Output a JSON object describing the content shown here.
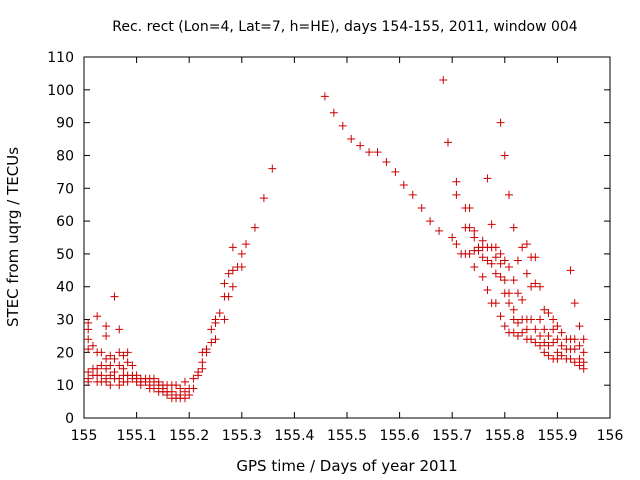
{
  "chart_data": {
    "type": "scatter",
    "title": "Rec. rect (Lon=4, Lat=7, h=HE), days 154-155, 2011, window 004",
    "xlabel": "GPS time / Days of year 2011",
    "ylabel": "STEC from uqrg / TECUs",
    "xlim": [
      155,
      156
    ],
    "ylim": [
      0,
      110
    ],
    "x_ticks": [
      "155",
      "155.1",
      "155.2",
      "155.3",
      "155.4",
      "155.5",
      "155.6",
      "155.7",
      "155.8",
      "155.9",
      "156"
    ],
    "y_ticks": [
      "0",
      "10",
      "20",
      "30",
      "40",
      "50",
      "60",
      "70",
      "80",
      "90",
      "100",
      "110"
    ],
    "grid": false,
    "legend": "none",
    "marker": "plus",
    "color": "#cc0000",
    "series": [
      {
        "points": [
          [
            155.008,
            29
          ],
          [
            155.008,
            27
          ],
          [
            155.008,
            24
          ],
          [
            155.008,
            21
          ],
          [
            155.008,
            14
          ],
          [
            155.008,
            12
          ],
          [
            155.008,
            11
          ],
          [
            155.017,
            22
          ],
          [
            155.017,
            15
          ],
          [
            155.017,
            13
          ],
          [
            155.025,
            31
          ],
          [
            155.025,
            20
          ],
          [
            155.025,
            15
          ],
          [
            155.025,
            13
          ],
          [
            155.025,
            11
          ],
          [
            155.033,
            20
          ],
          [
            155.033,
            16
          ],
          [
            155.033,
            13
          ],
          [
            155.033,
            11
          ],
          [
            155.042,
            28
          ],
          [
            155.042,
            25
          ],
          [
            155.042,
            18
          ],
          [
            155.042,
            15
          ],
          [
            155.042,
            12
          ],
          [
            155.042,
            11
          ],
          [
            155.05,
            19
          ],
          [
            155.05,
            16
          ],
          [
            155.05,
            13
          ],
          [
            155.05,
            10
          ],
          [
            155.058,
            37
          ],
          [
            155.058,
            18
          ],
          [
            155.058,
            14
          ],
          [
            155.058,
            12
          ],
          [
            155.067,
            27
          ],
          [
            155.067,
            20
          ],
          [
            155.067,
            16
          ],
          [
            155.067,
            12
          ],
          [
            155.067,
            10
          ],
          [
            155.075,
            19
          ],
          [
            155.075,
            15
          ],
          [
            155.075,
            13
          ],
          [
            155.075,
            11
          ],
          [
            155.083,
            20
          ],
          [
            155.083,
            17
          ],
          [
            155.083,
            13
          ],
          [
            155.083,
            11
          ],
          [
            155.092,
            16
          ],
          [
            155.092,
            13
          ],
          [
            155.092,
            12
          ],
          [
            155.1,
            13
          ],
          [
            155.1,
            12
          ],
          [
            155.1,
            11
          ],
          [
            155.108,
            12
          ],
          [
            155.108,
            11
          ],
          [
            155.108,
            10
          ],
          [
            155.117,
            12
          ],
          [
            155.117,
            11
          ],
          [
            155.125,
            12
          ],
          [
            155.125,
            10
          ],
          [
            155.125,
            9
          ],
          [
            155.133,
            12
          ],
          [
            155.133,
            11
          ],
          [
            155.133,
            9
          ],
          [
            155.142,
            11
          ],
          [
            155.142,
            10
          ],
          [
            155.142,
            8
          ],
          [
            155.15,
            10
          ],
          [
            155.15,
            9
          ],
          [
            155.15,
            8
          ],
          [
            155.158,
            10
          ],
          [
            155.158,
            8
          ],
          [
            155.158,
            7
          ],
          [
            155.167,
            10
          ],
          [
            155.167,
            8
          ],
          [
            155.167,
            6
          ],
          [
            155.175,
            10
          ],
          [
            155.175,
            7
          ],
          [
            155.175,
            6
          ],
          [
            155.183,
            9
          ],
          [
            155.183,
            7
          ],
          [
            155.183,
            6
          ],
          [
            155.192,
            11
          ],
          [
            155.192,
            8
          ],
          [
            155.192,
            6
          ],
          [
            155.2,
            9
          ],
          [
            155.2,
            7
          ],
          [
            155.208,
            12
          ],
          [
            155.208,
            9
          ],
          [
            155.217,
            14
          ],
          [
            155.217,
            13
          ],
          [
            155.225,
            20
          ],
          [
            155.225,
            17
          ],
          [
            155.225,
            15
          ],
          [
            155.233,
            21
          ],
          [
            155.233,
            20
          ],
          [
            155.242,
            27
          ],
          [
            155.242,
            23
          ],
          [
            155.25,
            30
          ],
          [
            155.25,
            29
          ],
          [
            155.25,
            24
          ],
          [
            155.258,
            32
          ],
          [
            155.267,
            41
          ],
          [
            155.267,
            37
          ],
          [
            155.267,
            30
          ],
          [
            155.275,
            44
          ],
          [
            155.275,
            37
          ],
          [
            155.283,
            52
          ],
          [
            155.283,
            45
          ],
          [
            155.283,
            40
          ],
          [
            155.292,
            46
          ],
          [
            155.3,
            50
          ],
          [
            155.3,
            46
          ],
          [
            155.308,
            53
          ],
          [
            155.325,
            58
          ],
          [
            155.342,
            67
          ],
          [
            155.358,
            76
          ],
          [
            155.458,
            98
          ],
          [
            155.475,
            93
          ],
          [
            155.492,
            89
          ],
          [
            155.508,
            85
          ],
          [
            155.525,
            83
          ],
          [
            155.542,
            81
          ],
          [
            155.558,
            81
          ],
          [
            155.575,
            78
          ],
          [
            155.592,
            75
          ],
          [
            155.608,
            71
          ],
          [
            155.625,
            68
          ],
          [
            155.642,
            64
          ],
          [
            155.658,
            60
          ],
          [
            155.675,
            57
          ],
          [
            155.683,
            103
          ],
          [
            155.692,
            84
          ],
          [
            155.7,
            55
          ],
          [
            155.708,
            72
          ],
          [
            155.708,
            68
          ],
          [
            155.708,
            53
          ],
          [
            155.717,
            50
          ],
          [
            155.725,
            64
          ],
          [
            155.725,
            58
          ],
          [
            155.725,
            50
          ],
          [
            155.733,
            64
          ],
          [
            155.733,
            58
          ],
          [
            155.733,
            50
          ],
          [
            155.742,
            57
          ],
          [
            155.742,
            55
          ],
          [
            155.742,
            51
          ],
          [
            155.742,
            46
          ],
          [
            155.75,
            52
          ],
          [
            155.75,
            51
          ],
          [
            155.758,
            54
          ],
          [
            155.758,
            52
          ],
          [
            155.758,
            49
          ],
          [
            155.758,
            43
          ],
          [
            155.767,
            73
          ],
          [
            155.767,
            52
          ],
          [
            155.767,
            48
          ],
          [
            155.767,
            39
          ],
          [
            155.775,
            59
          ],
          [
            155.775,
            52
          ],
          [
            155.775,
            47
          ],
          [
            155.775,
            35
          ],
          [
            155.783,
            52
          ],
          [
            155.783,
            49
          ],
          [
            155.783,
            44
          ],
          [
            155.783,
            35
          ],
          [
            155.792,
            90
          ],
          [
            155.792,
            50
          ],
          [
            155.792,
            47
          ],
          [
            155.792,
            43
          ],
          [
            155.792,
            31
          ],
          [
            155.8,
            80
          ],
          [
            155.8,
            48
          ],
          [
            155.8,
            42
          ],
          [
            155.8,
            38
          ],
          [
            155.8,
            28
          ],
          [
            155.808,
            68
          ],
          [
            155.808,
            46
          ],
          [
            155.808,
            38
          ],
          [
            155.808,
            35
          ],
          [
            155.808,
            26
          ],
          [
            155.817,
            58
          ],
          [
            155.817,
            42
          ],
          [
            155.817,
            33
          ],
          [
            155.817,
            30
          ],
          [
            155.817,
            26
          ],
          [
            155.825,
            48
          ],
          [
            155.825,
            38
          ],
          [
            155.825,
            29
          ],
          [
            155.825,
            25
          ],
          [
            155.833,
            52
          ],
          [
            155.833,
            36
          ],
          [
            155.833,
            30
          ],
          [
            155.833,
            26
          ],
          [
            155.842,
            53
          ],
          [
            155.842,
            44
          ],
          [
            155.842,
            30
          ],
          [
            155.842,
            27
          ],
          [
            155.842,
            24
          ],
          [
            155.85,
            49
          ],
          [
            155.85,
            40
          ],
          [
            155.85,
            30
          ],
          [
            155.85,
            24
          ],
          [
            155.858,
            49
          ],
          [
            155.858,
            41
          ],
          [
            155.858,
            27
          ],
          [
            155.858,
            23
          ],
          [
            155.867,
            40
          ],
          [
            155.867,
            30
          ],
          [
            155.867,
            25
          ],
          [
            155.867,
            22
          ],
          [
            155.875,
            33
          ],
          [
            155.875,
            27
          ],
          [
            155.875,
            23
          ],
          [
            155.875,
            20
          ],
          [
            155.883,
            32
          ],
          [
            155.883,
            25
          ],
          [
            155.883,
            22
          ],
          [
            155.883,
            19
          ],
          [
            155.892,
            30
          ],
          [
            155.892,
            27
          ],
          [
            155.892,
            23
          ],
          [
            155.892,
            18
          ],
          [
            155.9,
            28
          ],
          [
            155.9,
            24
          ],
          [
            155.9,
            20
          ],
          [
            155.9,
            18
          ],
          [
            155.908,
            26
          ],
          [
            155.908,
            22
          ],
          [
            155.908,
            19
          ],
          [
            155.917,
            24
          ],
          [
            155.917,
            21
          ],
          [
            155.917,
            18
          ],
          [
            155.925,
            45
          ],
          [
            155.925,
            24
          ],
          [
            155.925,
            21
          ],
          [
            155.925,
            18
          ],
          [
            155.933,
            35
          ],
          [
            155.933,
            24
          ],
          [
            155.933,
            21
          ],
          [
            155.933,
            17
          ],
          [
            155.942,
            28
          ],
          [
            155.942,
            22
          ],
          [
            155.942,
            18
          ],
          [
            155.942,
            16
          ],
          [
            155.95,
            24
          ],
          [
            155.95,
            20
          ],
          [
            155.95,
            17
          ],
          [
            155.95,
            15
          ]
        ]
      }
    ]
  }
}
